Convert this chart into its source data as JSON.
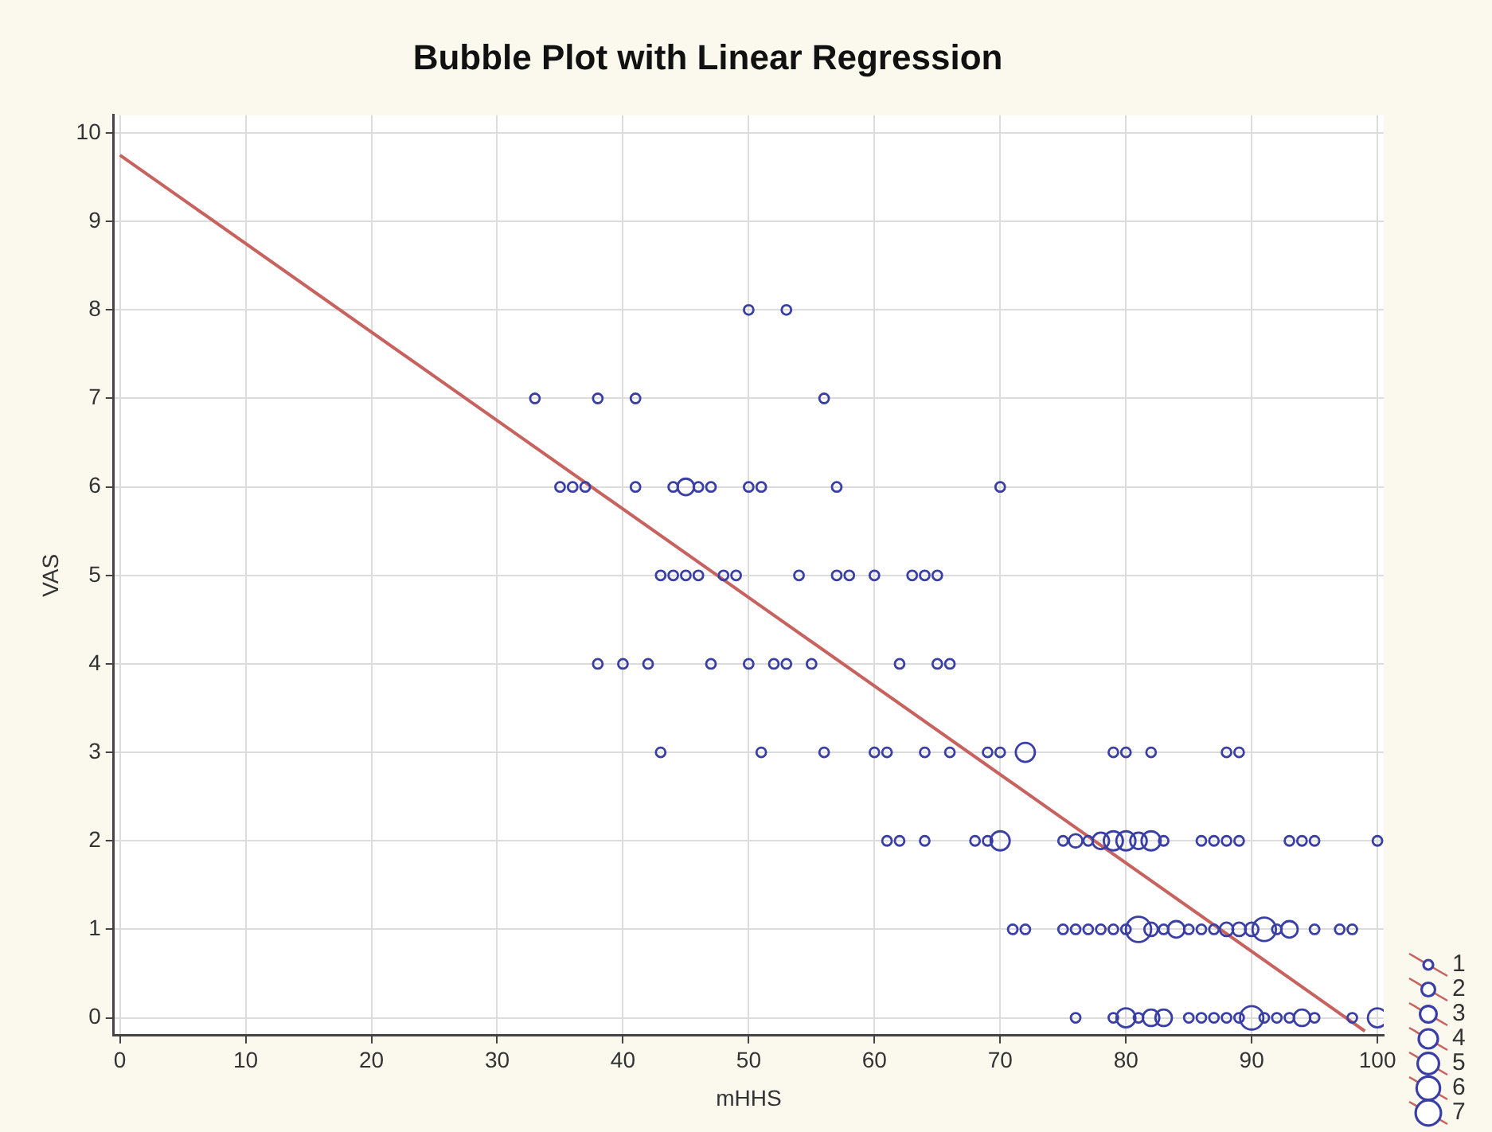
{
  "chart_data": {
    "type": "bubble",
    "title": "Bubble Plot with Linear Regression",
    "xlabel": "mHHS",
    "ylabel": "VAS",
    "xlim": [
      -0.5,
      100.5
    ],
    "ylim": [
      -0.2,
      10.2
    ],
    "xticks": [
      0,
      10,
      20,
      30,
      40,
      50,
      60,
      70,
      80,
      90,
      100
    ],
    "yticks": [
      0,
      1,
      2,
      3,
      4,
      5,
      6,
      7,
      8,
      9,
      10
    ],
    "grid": true,
    "size_legend": [
      1,
      2,
      3,
      4,
      5,
      6,
      7
    ],
    "line_style": "solid",
    "series": [
      {
        "color": "#3a3fa6",
        "x": [
          50,
          53,
          33,
          38,
          41,
          56,
          35,
          36,
          37,
          41,
          44,
          45,
          46,
          47,
          50,
          51,
          57,
          70,
          43,
          44,
          45,
          46,
          48,
          49,
          54,
          57,
          58,
          60,
          63,
          64,
          65,
          38,
          40,
          42,
          47,
          50,
          52,
          53,
          55,
          62,
          65,
          66,
          43,
          51,
          56,
          60,
          61,
          64,
          66,
          69,
          70,
          72,
          79,
          80,
          82,
          88,
          89,
          61,
          62,
          64,
          68,
          69,
          70,
          75,
          76,
          77,
          78,
          79,
          80,
          81,
          82,
          83,
          86,
          87,
          88,
          89,
          93,
          94,
          95,
          100,
          71,
          72,
          75,
          76,
          77,
          78,
          79,
          80,
          81,
          82,
          83,
          84,
          85,
          86,
          87,
          88,
          89,
          90,
          91,
          92,
          93,
          95,
          97,
          98,
          76,
          79,
          80,
          81,
          82,
          83,
          85,
          86,
          87,
          88,
          89,
          90,
          91,
          92,
          93,
          94,
          95,
          98,
          100
        ],
        "values": [
          8,
          8,
          7,
          7,
          7,
          7,
          6,
          6,
          6,
          6,
          6,
          6,
          6,
          6,
          6,
          6,
          6,
          6,
          5,
          5,
          5,
          5,
          5,
          5,
          5,
          5,
          5,
          5,
          5,
          5,
          5,
          4,
          4,
          4,
          4,
          4,
          4,
          4,
          4,
          4,
          4,
          4,
          3,
          3,
          3,
          3,
          3,
          3,
          3,
          3,
          3,
          3,
          3,
          3,
          3,
          3,
          3,
          2,
          2,
          2,
          2,
          2,
          2,
          2,
          2,
          2,
          2,
          2,
          2,
          2,
          2,
          2,
          2,
          2,
          2,
          2,
          2,
          2,
          2,
          2,
          1,
          1,
          1,
          1,
          1,
          1,
          1,
          1,
          1,
          1,
          1,
          1,
          1,
          1,
          1,
          1,
          1,
          1,
          1,
          1,
          1,
          1,
          1,
          1,
          0,
          0,
          0,
          0,
          0,
          0,
          0,
          0,
          0,
          0,
          0,
          0,
          0,
          0,
          0,
          0,
          0,
          0,
          0
        ],
        "sizes": [
          1,
          1,
          1,
          1,
          1,
          1,
          1,
          1,
          1,
          1,
          1,
          3,
          1,
          1,
          1,
          1,
          1,
          1,
          1,
          1,
          1,
          1,
          1,
          1,
          1,
          1,
          1,
          1,
          1,
          1,
          1,
          1,
          1,
          1,
          1,
          1,
          1,
          1,
          1,
          1,
          1,
          1,
          1,
          1,
          1,
          1,
          1,
          1,
          1,
          1,
          1,
          4,
          1,
          1,
          1,
          1,
          1,
          1,
          1,
          1,
          1,
          1,
          4,
          1,
          2,
          1,
          3,
          4,
          4,
          3,
          4,
          1,
          1,
          1,
          1,
          1,
          1,
          1,
          1,
          1,
          1,
          1,
          1,
          1,
          1,
          1,
          1,
          1,
          7,
          2,
          1,
          3,
          1,
          1,
          1,
          2,
          2,
          2,
          6,
          1,
          3,
          1,
          1,
          1,
          1,
          1,
          4,
          1,
          3,
          3,
          1,
          1,
          1,
          1,
          1,
          6,
          1,
          1,
          1,
          3,
          1,
          1,
          4
        ]
      },
      {
        "type": "line",
        "color": "#c8625f",
        "x": [
          0,
          99
        ],
        "values": [
          9.75,
          -0.15
        ]
      }
    ]
  }
}
